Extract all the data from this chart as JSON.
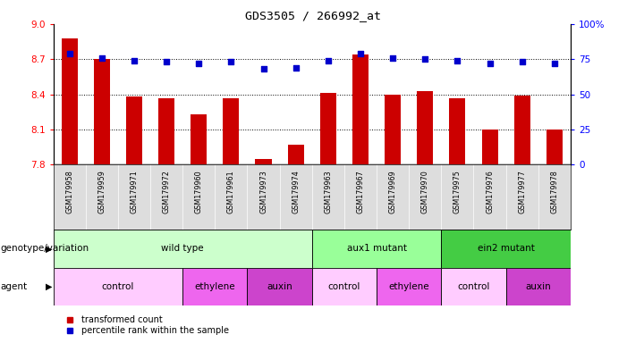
{
  "title": "GDS3505 / 266992_at",
  "samples": [
    "GSM179958",
    "GSM179959",
    "GSM179971",
    "GSM179972",
    "GSM179960",
    "GSM179961",
    "GSM179973",
    "GSM179974",
    "GSM179963",
    "GSM179967",
    "GSM179969",
    "GSM179970",
    "GSM179975",
    "GSM179976",
    "GSM179977",
    "GSM179978"
  ],
  "bar_values": [
    8.88,
    8.7,
    8.38,
    8.37,
    8.23,
    8.37,
    7.85,
    7.97,
    8.41,
    8.74,
    8.4,
    8.43,
    8.37,
    8.1,
    8.39,
    8.1
  ],
  "dot_values": [
    79,
    76,
    74,
    73,
    72,
    73,
    68,
    69,
    74,
    79,
    76,
    75,
    74,
    72,
    73,
    72
  ],
  "ylim_left": [
    7.8,
    9.0
  ],
  "ylim_right": [
    0,
    100
  ],
  "yticks_left": [
    7.8,
    8.1,
    8.4,
    8.7,
    9.0
  ],
  "yticks_right": [
    0,
    25,
    50,
    75,
    100
  ],
  "bar_color": "#cc0000",
  "dot_color": "#0000cc",
  "bar_bottom": 7.8,
  "genotype_groups": [
    {
      "label": "wild type",
      "start": 0,
      "end": 8,
      "color": "#ccffcc"
    },
    {
      "label": "aux1 mutant",
      "start": 8,
      "end": 12,
      "color": "#99ff99"
    },
    {
      "label": "ein2 mutant",
      "start": 12,
      "end": 16,
      "color": "#44cc44"
    }
  ],
  "agent_groups": [
    {
      "label": "control",
      "start": 0,
      "end": 4,
      "color": "#ffccff"
    },
    {
      "label": "ethylene",
      "start": 4,
      "end": 6,
      "color": "#ee66ee"
    },
    {
      "label": "auxin",
      "start": 6,
      "end": 8,
      "color": "#cc44cc"
    },
    {
      "label": "control",
      "start": 8,
      "end": 10,
      "color": "#ffccff"
    },
    {
      "label": "ethylene",
      "start": 10,
      "end": 12,
      "color": "#ee66ee"
    },
    {
      "label": "control",
      "start": 12,
      "end": 14,
      "color": "#ffccff"
    },
    {
      "label": "auxin",
      "start": 14,
      "end": 16,
      "color": "#cc44cc"
    }
  ],
  "row_labels": [
    "genotype/variation",
    "agent"
  ],
  "legend_bar_label": "transformed count",
  "legend_dot_label": "percentile rank within the sample",
  "background_color": "#ffffff",
  "sample_bg_color": "#dddddd"
}
